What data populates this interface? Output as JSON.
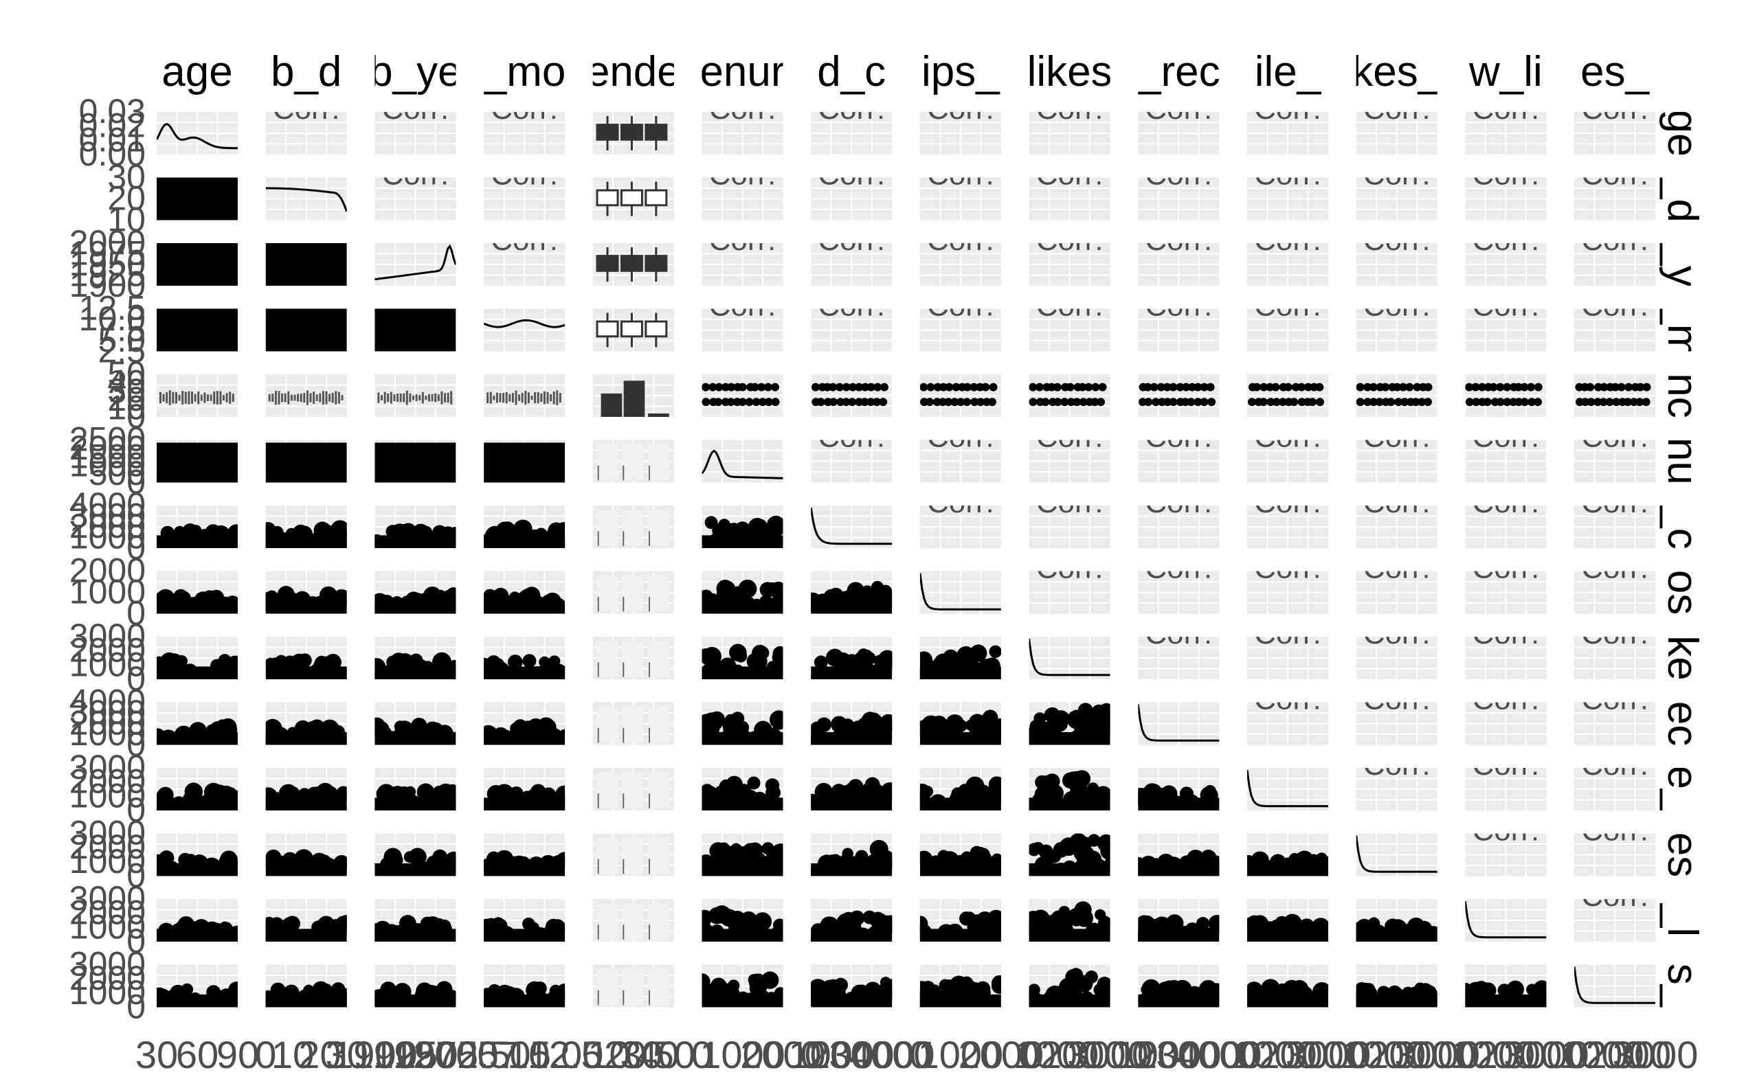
{
  "chart_data": {
    "type": "scatter",
    "layout": "pairs-matrix",
    "variables": [
      "age",
      "b_d",
      "b_ye",
      "_mo",
      "ende",
      "enur",
      "d_c",
      "ips_",
      "likes",
      "_rec",
      "ile_",
      "kes_",
      "w_li",
      "es_"
    ],
    "column_strips": [
      "age",
      "b_d",
      "b_ye",
      "_mo",
      "ende",
      "enur",
      "d_c",
      "ips_",
      "likes",
      "_rec",
      "ile_",
      "kes_",
      "w_li",
      "es_"
    ],
    "row_strips": [
      "ge",
      "_d",
      "_y",
      "_m",
      "nc",
      "nu",
      "_c",
      "os",
      "ke",
      "ec",
      "e_",
      "es",
      "_l",
      "s_"
    ],
    "categorical_variable_index": 4,
    "upper_panel_text": "Corr:",
    "left_tick_labels": [
      [
        "0.03",
        "0.02",
        "0.01",
        "0.00"
      ],
      [
        "30",
        "20",
        "10"
      ],
      [
        "2000",
        "1975",
        "1950",
        "1925",
        "1900"
      ],
      [
        "12.5",
        "10.0",
        "7.5",
        "5.0",
        "2.5"
      ],
      [
        "50",
        "40",
        "30",
        "20",
        "10",
        "0"
      ],
      [
        "2500",
        "2000",
        "1500",
        "1000",
        "500",
        "0"
      ],
      [
        "4000",
        "3000",
        "2000",
        "1000",
        "0"
      ],
      [
        "2000",
        "1000",
        "0"
      ],
      [
        "3000",
        "2000",
        "1000",
        "0"
      ],
      [
        "4000",
        "3000",
        "2000",
        "1000",
        "0"
      ],
      [
        "3000",
        "2000",
        "1000",
        "0"
      ],
      [
        "3000",
        "2000",
        "1000",
        "0"
      ],
      [
        "3000",
        "2000",
        "1000",
        "0"
      ],
      [
        "3000",
        "2000",
        "1000",
        "0"
      ]
    ],
    "bottom_tick_labels": [
      [
        "30",
        "60",
        "90"
      ],
      [
        "0",
        "10",
        "20",
        "30"
      ],
      [
        "1900",
        "1925",
        "1950",
        "1975",
        "2000"
      ],
      [
        "2.5",
        "5.0",
        "7.5",
        "10.0",
        "12.5"
      ],
      [
        "0",
        "10",
        "20",
        "30",
        "40",
        "50"
      ],
      [
        "0",
        "1000",
        "2000"
      ],
      [
        "0",
        "1000",
        "2000",
        "3000",
        "4000"
      ],
      [
        "0",
        "1000",
        "2000"
      ],
      [
        "0",
        "1000",
        "2000",
        "3000"
      ],
      [
        "0",
        "1000",
        "2000",
        "3000",
        "4000"
      ],
      [
        "0",
        "1000",
        "2000",
        "3000"
      ],
      [
        "0",
        "1000",
        "2000",
        "3000"
      ],
      [
        "0",
        "1000",
        "2000",
        "3000"
      ],
      [
        "0",
        "1000",
        "2000",
        "3000"
      ]
    ],
    "grid": true,
    "panel_background": "#ebebeb",
    "mark_color": "#000000",
    "tick_color": "#4d4d4d"
  }
}
